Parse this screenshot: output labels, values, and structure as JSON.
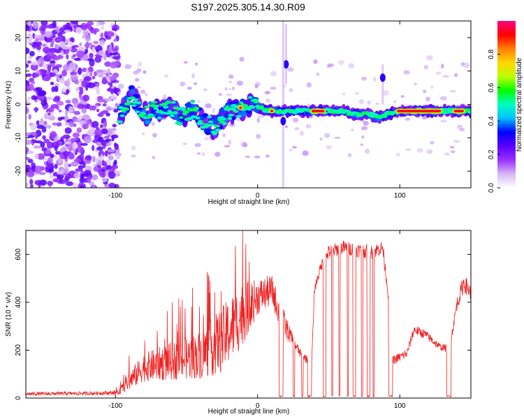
{
  "title": "S197.2025.305.14.30.R09",
  "chart_data": [
    {
      "type": "heatmap",
      "name": "spectrogram",
      "xlabel": "Height of straight line (km)",
      "ylabel": "Frequency (Hz)",
      "xlim": [
        -163,
        150
      ],
      "ylim": [
        -25,
        25
      ],
      "xticks": [
        -100,
        0,
        100
      ],
      "yticks": [
        -20,
        -10,
        0,
        10,
        20
      ],
      "xtick_labels": [
        "-100",
        "0",
        "100"
      ],
      "ytick_labels": [
        "-20",
        "-10",
        "0",
        "10",
        "20"
      ],
      "noise_region_xmax": -98,
      "signal_track": [
        {
          "x": -97,
          "f": -3
        },
        {
          "x": -93,
          "f": 0
        },
        {
          "x": -88,
          "f": 3
        },
        {
          "x": -83,
          "f": -1
        },
        {
          "x": -78,
          "f": -3
        },
        {
          "x": -72,
          "f": -1
        },
        {
          "x": -66,
          "f": -2
        },
        {
          "x": -60,
          "f": -1
        },
        {
          "x": -55,
          "f": -4
        },
        {
          "x": -50,
          "f": -3
        },
        {
          "x": -45,
          "f": -1
        },
        {
          "x": -40,
          "f": -4
        },
        {
          "x": -35,
          "f": -6
        },
        {
          "x": -30,
          "f": -7
        },
        {
          "x": -25,
          "f": -4
        },
        {
          "x": -20,
          "f": -2
        },
        {
          "x": -15,
          "f": -2
        },
        {
          "x": -10,
          "f": -1
        },
        {
          "x": -5,
          "f": 0
        },
        {
          "x": 0,
          "f": -1
        },
        {
          "x": 10,
          "f": -2
        },
        {
          "x": 20,
          "f": -2
        },
        {
          "x": 30,
          "f": -2
        },
        {
          "x": 40,
          "f": -2
        },
        {
          "x": 50,
          "f": -2
        },
        {
          "x": 60,
          "f": -2
        },
        {
          "x": 70,
          "f": -3
        },
        {
          "x": 80,
          "f": -3
        },
        {
          "x": 85,
          "f": -4
        },
        {
          "x": 90,
          "f": -3
        },
        {
          "x": 100,
          "f": -2
        },
        {
          "x": 110,
          "f": -2
        },
        {
          "x": 120,
          "f": -2
        },
        {
          "x": 130,
          "f": -2
        },
        {
          "x": 140,
          "f": -2
        },
        {
          "x": 150,
          "f": -2
        }
      ],
      "hot_segments": [
        {
          "x0": 97,
          "x1": 130,
          "f": -2
        },
        {
          "x0": 37,
          "x1": 48,
          "f": -2
        },
        {
          "x0": -14,
          "x1": -10,
          "f": -1
        },
        {
          "x0": 8,
          "x1": 12,
          "f": -2
        },
        {
          "x0": 137,
          "x1": 146,
          "f": -2
        }
      ],
      "side_features": [
        {
          "x": 20,
          "f": 12,
          "extent": [
            6,
            24
          ]
        },
        {
          "x": 88,
          "f": 8,
          "extent": [
            0,
            12
          ]
        },
        {
          "x": 18,
          "f": -5,
          "extent": [
            -25,
            25
          ]
        }
      ]
    },
    {
      "type": "line",
      "name": "snr",
      "xlabel": "Height of straight line (km)",
      "ylabel": "SNR (10 * v/v)",
      "xlim": [
        -163,
        150
      ],
      "ylim": [
        0,
        700
      ],
      "xticks": [
        -100,
        0,
        100
      ],
      "yticks": [
        0,
        200,
        400,
        600
      ],
      "xtick_labels": [
        "-100",
        "0",
        "100"
      ],
      "ytick_labels": [
        "0",
        "200",
        "400",
        "600"
      ],
      "color": "#ee2222",
      "envelope": [
        {
          "x": -163,
          "base": 15,
          "spread": 15
        },
        {
          "x": -110,
          "base": 18,
          "spread": 15
        },
        {
          "x": -98,
          "base": 20,
          "spread": 20
        },
        {
          "x": -90,
          "base": 60,
          "spread": 80
        },
        {
          "x": -80,
          "base": 110,
          "spread": 120
        },
        {
          "x": -60,
          "base": 130,
          "spread": 160
        },
        {
          "x": -40,
          "base": 150,
          "spread": 200
        },
        {
          "x": -25,
          "base": 200,
          "spread": 280
        },
        {
          "x": -12,
          "base": 300,
          "spread": 280
        },
        {
          "x": 0,
          "base": 400,
          "spread": 150
        },
        {
          "x": 10,
          "base": 430,
          "spread": 130
        },
        {
          "x": 18,
          "base": 300,
          "spread": 120
        },
        {
          "x": 24,
          "base": 240,
          "spread": 60
        },
        {
          "x": 30,
          "base": 180,
          "spread": 40
        },
        {
          "x": 38,
          "base": 140,
          "spread": 30
        },
        {
          "x": 40,
          "base": 450,
          "spread": 40
        },
        {
          "x": 45,
          "base": 550,
          "spread": 50
        },
        {
          "x": 50,
          "base": 600,
          "spread": 60
        },
        {
          "x": 60,
          "base": 620,
          "spread": 60
        },
        {
          "x": 70,
          "base": 610,
          "spread": 60
        },
        {
          "x": 80,
          "base": 600,
          "spread": 60
        },
        {
          "x": 88,
          "base": 620,
          "spread": 60
        },
        {
          "x": 92,
          "base": 420,
          "spread": 50
        },
        {
          "x": 95,
          "base": 150,
          "spread": 40
        },
        {
          "x": 105,
          "base": 180,
          "spread": 40
        },
        {
          "x": 110,
          "base": 280,
          "spread": 40
        },
        {
          "x": 118,
          "base": 260,
          "spread": 40
        },
        {
          "x": 128,
          "base": 210,
          "spread": 30
        },
        {
          "x": 135,
          "base": 200,
          "spread": 30
        },
        {
          "x": 140,
          "base": 380,
          "spread": 60
        },
        {
          "x": 145,
          "base": 470,
          "spread": 80
        },
        {
          "x": 150,
          "base": 430,
          "spread": 60
        }
      ],
      "dropouts": [
        {
          "x0": 15,
          "x1": 18,
          "level": 5
        },
        {
          "x0": 25,
          "x1": 26,
          "level": 5
        },
        {
          "x0": 31,
          "x1": 32,
          "level": 5
        },
        {
          "x0": 35,
          "x1": 38,
          "level": 5
        },
        {
          "x0": 46,
          "x1": 48,
          "level": 5
        },
        {
          "x0": 52,
          "x1": 53,
          "level": 5
        },
        {
          "x0": 57,
          "x1": 58,
          "level": 5
        },
        {
          "x0": 63,
          "x1": 64,
          "level": 5
        },
        {
          "x0": 67,
          "x1": 69,
          "level": 5
        },
        {
          "x0": 73,
          "x1": 74,
          "level": 5
        },
        {
          "x0": 77,
          "x1": 79,
          "level": 5
        },
        {
          "x0": 81,
          "x1": 82,
          "level": 5
        },
        {
          "x0": 92,
          "x1": 95,
          "level": 5
        },
        {
          "x0": 133,
          "x1": 136,
          "level": 5
        }
      ]
    }
  ],
  "colorbar": {
    "label": "Normalized spectral amplitude",
    "ticks": [
      0.0,
      0.2,
      0.4,
      0.6,
      0.8
    ],
    "tick_labels": [
      "0.0",
      "0.2",
      "0.4",
      "0.6",
      "0.8"
    ],
    "range": [
      0,
      1
    ],
    "colors": [
      "#ffffff",
      "#d6b8f5",
      "#9b30ff",
      "#5a00ff",
      "#0000ff",
      "#00bfff",
      "#00ffbf",
      "#00ff00",
      "#bfff00",
      "#ffd700",
      "#ff7f00",
      "#ff0000",
      "#ff0080"
    ]
  }
}
